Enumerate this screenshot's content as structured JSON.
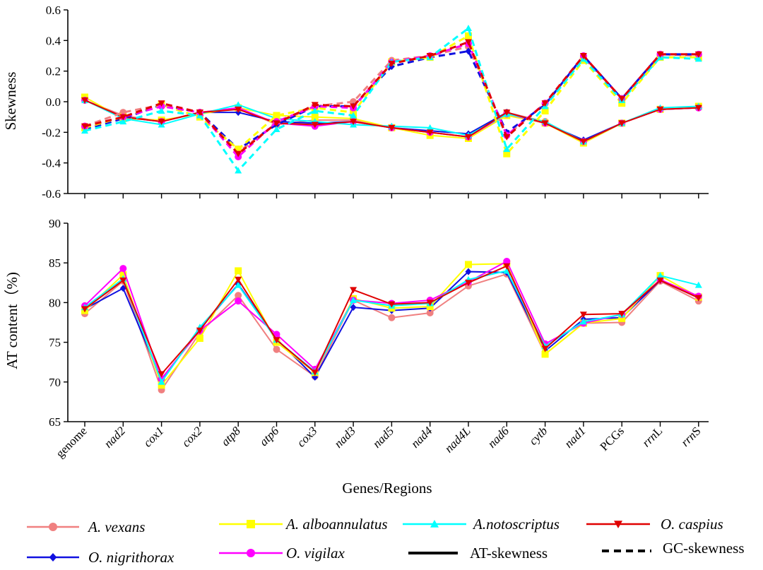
{
  "chart_data": [
    {
      "type": "line",
      "panel": "top",
      "ylabel": "Skewness",
      "xlabel": "",
      "ylim": [
        -0.6,
        0.6
      ],
      "yticks": [
        "0.6",
        "0.4",
        "0.2",
        "0.0",
        "-0.2",
        "-0.4",
        "-0.6"
      ],
      "categories": [
        "genome",
        "nad2",
        "cox1",
        "cox2",
        "atp8",
        "atp6",
        "cox3",
        "nad3",
        "nad5",
        "nad4",
        "nad4L",
        "nad6",
        "cytb",
        "nad1",
        "PCGs",
        "rrnL",
        "rrnS"
      ],
      "series": [
        {
          "name": "A. vexans",
          "metric": "AT-skewness",
          "values": [
            0.01,
            -0.09,
            -0.13,
            -0.07,
            -0.04,
            -0.15,
            -0.12,
            -0.12,
            -0.17,
            -0.2,
            -0.23,
            -0.07,
            -0.13,
            -0.26,
            -0.14,
            -0.05,
            -0.04
          ]
        },
        {
          "name": "O. nigrithorax",
          "metric": "AT-skewness",
          "values": [
            0.01,
            -0.1,
            -0.13,
            -0.07,
            -0.07,
            -0.13,
            -0.14,
            -0.13,
            -0.17,
            -0.19,
            -0.21,
            -0.07,
            -0.14,
            -0.25,
            -0.14,
            -0.05,
            -0.04
          ]
        },
        {
          "name": "A. alboannulatus",
          "metric": "AT-skewness",
          "values": [
            0.03,
            -0.11,
            -0.12,
            -0.08,
            -0.04,
            -0.09,
            -0.1,
            -0.11,
            -0.17,
            -0.22,
            -0.24,
            -0.09,
            -0.14,
            -0.27,
            -0.14,
            -0.05,
            -0.03
          ]
        },
        {
          "name": "O. vigilax",
          "metric": "AT-skewness",
          "values": [
            0.01,
            -0.1,
            -0.13,
            -0.07,
            -0.04,
            -0.14,
            -0.16,
            -0.13,
            -0.17,
            -0.2,
            -0.23,
            -0.08,
            -0.14,
            -0.26,
            -0.14,
            -0.05,
            -0.04
          ]
        },
        {
          "name": "A.notoscriptus",
          "metric": "AT-skewness",
          "values": [
            0.01,
            -0.11,
            -0.15,
            -0.08,
            -0.02,
            -0.11,
            -0.13,
            -0.15,
            -0.16,
            -0.17,
            -0.22,
            -0.08,
            -0.13,
            -0.26,
            -0.14,
            -0.04,
            -0.03
          ]
        },
        {
          "name": "O. caspius",
          "metric": "AT-skewness",
          "values": [
            0.01,
            -0.1,
            -0.13,
            -0.07,
            -0.05,
            -0.14,
            -0.15,
            -0.13,
            -0.17,
            -0.2,
            -0.23,
            -0.07,
            -0.14,
            -0.26,
            -0.14,
            -0.05,
            -0.04
          ]
        },
        {
          "name": "A. vexans",
          "metric": "GC-skewness",
          "values": [
            -0.16,
            -0.07,
            -0.02,
            -0.07,
            -0.33,
            -0.14,
            -0.03,
            0.0,
            0.27,
            0.3,
            0.36,
            -0.22,
            -0.01,
            0.29,
            0.02,
            0.31,
            0.3
          ]
        },
        {
          "name": "O. nigrithorax",
          "metric": "GC-skewness",
          "values": [
            -0.18,
            -0.11,
            -0.02,
            -0.07,
            -0.31,
            -0.15,
            -0.03,
            -0.03,
            0.23,
            0.29,
            0.33,
            -0.2,
            -0.02,
            0.3,
            0.02,
            0.31,
            0.31
          ]
        },
        {
          "name": "A. alboannulatus",
          "metric": "GC-skewness",
          "values": [
            -0.17,
            -0.1,
            -0.02,
            -0.1,
            -0.31,
            -0.09,
            -0.04,
            -0.07,
            0.26,
            0.29,
            0.43,
            -0.34,
            -0.06,
            0.27,
            -0.01,
            0.29,
            0.29
          ]
        },
        {
          "name": "O. vigilax",
          "metric": "GC-skewness",
          "values": [
            -0.16,
            -0.1,
            -0.03,
            -0.07,
            -0.36,
            -0.13,
            -0.03,
            -0.04,
            0.26,
            0.3,
            0.38,
            -0.22,
            -0.01,
            0.3,
            0.02,
            0.31,
            0.31
          ]
        },
        {
          "name": "A.notoscriptus",
          "metric": "GC-skewness",
          "values": [
            -0.19,
            -0.13,
            -0.06,
            -0.09,
            -0.45,
            -0.18,
            -0.06,
            -0.09,
            0.26,
            0.29,
            0.48,
            -0.31,
            -0.03,
            0.28,
            0.01,
            0.29,
            0.28
          ]
        },
        {
          "name": "O. caspius",
          "metric": "GC-skewness",
          "values": [
            -0.16,
            -0.1,
            -0.01,
            -0.07,
            -0.34,
            -0.14,
            -0.02,
            -0.03,
            0.25,
            0.3,
            0.39,
            -0.23,
            -0.01,
            0.3,
            0.02,
            0.31,
            0.31
          ]
        }
      ]
    },
    {
      "type": "line",
      "panel": "bottom",
      "ylabel": "AT content（%)",
      "xlabel": "Genes/Regions",
      "ylim": [
        65,
        90
      ],
      "yticks": [
        "90",
        "85",
        "80",
        "75",
        "70",
        "65"
      ],
      "categories": [
        "genome",
        "nad2",
        "cox1",
        "cox2",
        "atp8",
        "atp6",
        "cox3",
        "nad3",
        "nad5",
        "nad4",
        "nad4L",
        "nad6",
        "cytb",
        "nad1",
        "PCGs",
        "rrnL",
        "rrnS"
      ],
      "series": [
        {
          "name": "A. vexans",
          "values": [
            78.6,
            82.7,
            69.0,
            76.2,
            80.9,
            74.1,
            70.7,
            80.3,
            78.1,
            78.7,
            82.1,
            83.6,
            73.5,
            77.4,
            77.5,
            82.7,
            80.2
          ]
        },
        {
          "name": "O. nigrithorax",
          "values": [
            79.2,
            81.8,
            70.2,
            76.7,
            82.3,
            75.4,
            70.6,
            79.4,
            79.0,
            79.3,
            83.9,
            83.8,
            73.9,
            77.9,
            78.1,
            82.8,
            80.6
          ]
        },
        {
          "name": "A. alboannulatus",
          "values": [
            79.0,
            83.5,
            69.6,
            75.5,
            84.0,
            75.0,
            71.2,
            80.5,
            79.3,
            79.5,
            84.8,
            84.9,
            73.5,
            77.4,
            78.0,
            83.4,
            80.7
          ]
        },
        {
          "name": "O. vigilax",
          "values": [
            79.6,
            84.3,
            70.4,
            76.5,
            80.2,
            76.0,
            71.6,
            80.3,
            79.9,
            80.3,
            82.6,
            85.2,
            74.8,
            77.4,
            78.5,
            82.9,
            80.8
          ]
        },
        {
          "name": "A.notoscriptus",
          "values": [
            79.4,
            83.0,
            70.0,
            76.9,
            82.2,
            75.3,
            71.3,
            80.3,
            79.6,
            79.9,
            82.9,
            84.0,
            74.5,
            77.6,
            78.5,
            83.4,
            82.2
          ]
        },
        {
          "name": "O. caspius",
          "values": [
            79.2,
            82.8,
            71.0,
            76.5,
            82.9,
            75.3,
            71.2,
            81.6,
            79.8,
            80.0,
            82.5,
            84.6,
            74.2,
            78.5,
            78.6,
            82.8,
            80.6
          ]
        }
      ]
    }
  ],
  "italic_categories": [
    "nad2",
    "cox1",
    "cox2",
    "atp8",
    "atp6",
    "cox3",
    "nad3",
    "nad5",
    "nad4",
    "nad4L",
    "nad6",
    "cytb",
    "nad1"
  ],
  "partial_italic": {
    "rrnL": [
      "rrn",
      "L"
    ],
    "rrnS": [
      "rrn",
      "S"
    ]
  },
  "styles": {
    "A. vexans": {
      "color": "#F08080",
      "marker": "circle"
    },
    "O. nigrithorax": {
      "color": "#1010E0",
      "marker": "diamond"
    },
    "A. alboannulatus": {
      "color": "#FFFF00",
      "marker": "square"
    },
    "O. vigilax": {
      "color": "#FF00FF",
      "marker": "circle"
    },
    "A.notoscriptus": {
      "color": "#00FFFF",
      "marker": "triangle-up"
    },
    "O. caspius": {
      "color": "#E00000",
      "marker": "triangle-down"
    }
  },
  "legend": {
    "species": [
      "A. vexans",
      "O. nigrithorax",
      "A. alboannulatus",
      "O. vigilax",
      "A.notoscriptus",
      "O. caspius"
    ],
    "line_styles": [
      {
        "label": "AT-skewness",
        "dash": "solid"
      },
      {
        "label": "GC-skewness",
        "dash": "dashed"
      }
    ]
  }
}
